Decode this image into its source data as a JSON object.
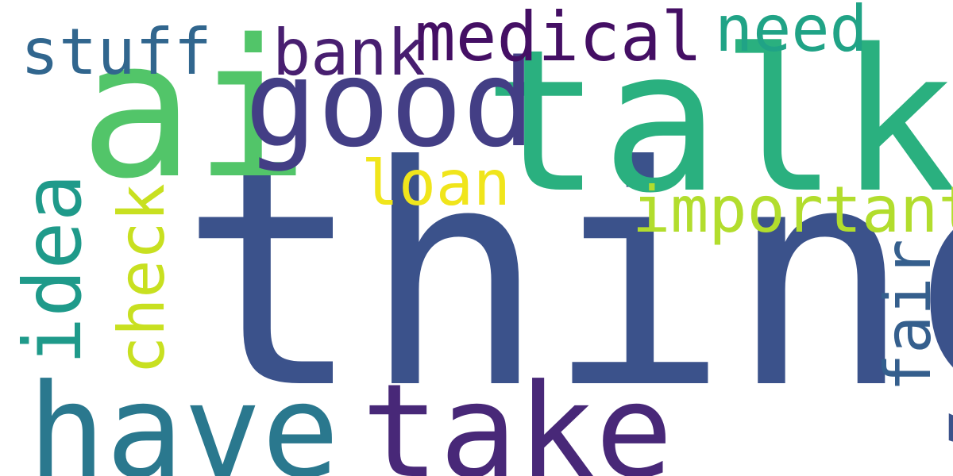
{
  "wordcloud": {
    "words": {
      "thing": {
        "text": "thing",
        "color": "#3b528b"
      },
      "talk": {
        "text": "talk",
        "color": "#2ab07f"
      },
      "ai": {
        "text": "ai",
        "color": "#52c569"
      },
      "good": {
        "text": "good",
        "color": "#433e85"
      },
      "have": {
        "text": "have",
        "color": "#2a788e"
      },
      "take": {
        "text": "take",
        "color": "#482878"
      },
      "medical": {
        "text": "medical",
        "color": "#440f64"
      },
      "bank": {
        "text": "bank",
        "color": "#481f70"
      },
      "stuff": {
        "text": "stuff",
        "color": "#31668e"
      },
      "need": {
        "text": "need",
        "color": "#20a386"
      },
      "loan": {
        "text": "loan",
        "color": "#f0e51b"
      },
      "important": {
        "text": "important",
        "color": "#b2dd2d"
      },
      "idea": {
        "text": "idea",
        "color": "#1f9a8a"
      },
      "check": {
        "text": "check",
        "color": "#c8e020"
      },
      "fair": {
        "text": "fair",
        "color": "#355f8d"
      }
    }
  }
}
